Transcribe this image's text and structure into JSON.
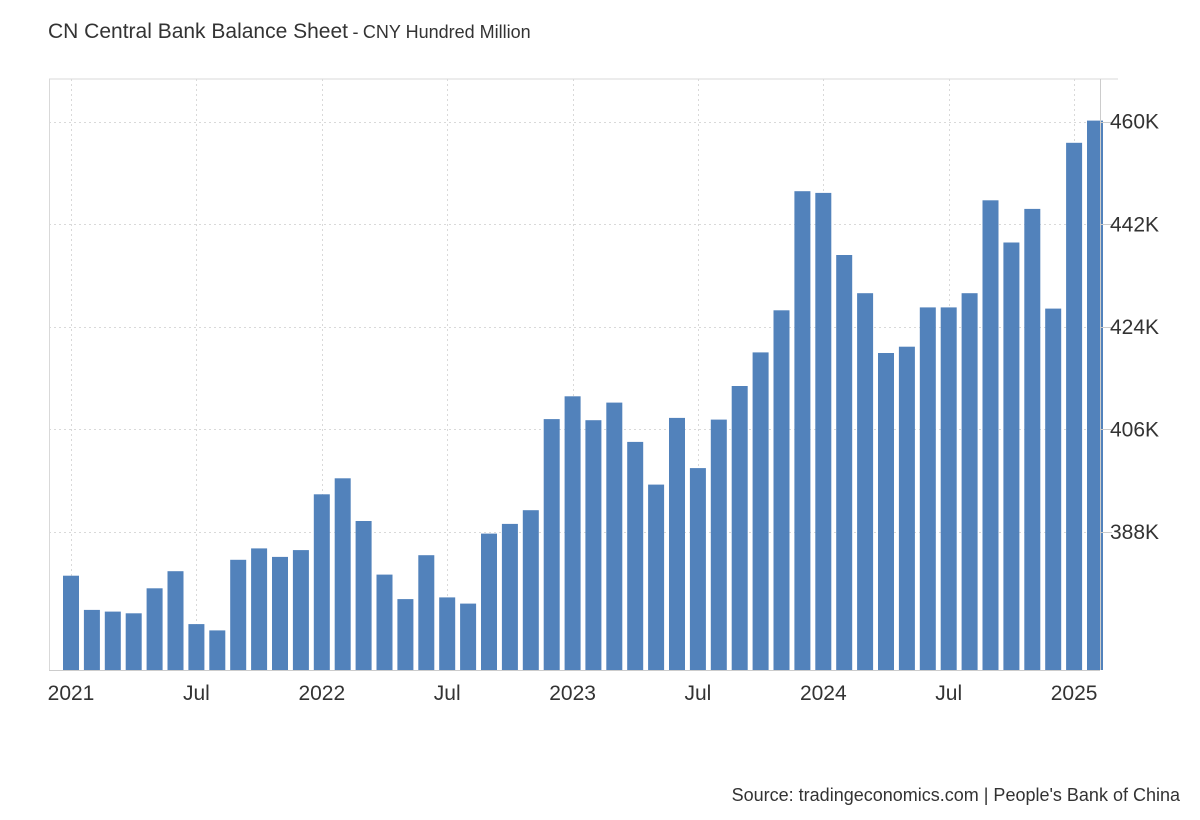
{
  "header": {
    "title": "CN Central Bank Balance Sheet",
    "separator": "-",
    "subtitle": "CNY Hundred Million"
  },
  "footer": {
    "source": "Source: tradingeconomics.com | People's Bank of China"
  },
  "colors": {
    "bar": "#5282bb",
    "grid": "#d9d9d9",
    "axis": "#cccccc",
    "text": "#333333"
  },
  "chart_data": {
    "type": "bar",
    "title": "CN Central Bank Balance Sheet",
    "ylabel": "CNY Hundred Million",
    "grid": true,
    "ylim": [
      363750,
      467500
    ],
    "y_axis_side": "right",
    "y_ticks": [
      388000,
      406000,
      424000,
      442000,
      460000
    ],
    "y_tick_labels": [
      "388K",
      "406K",
      "424K",
      "442K",
      "460K"
    ],
    "x_tick_labels": [
      {
        "index": 0,
        "label": "2021"
      },
      {
        "index": 6,
        "label": "Jul"
      },
      {
        "index": 12,
        "label": "2022"
      },
      {
        "index": 18,
        "label": "Jul"
      },
      {
        "index": 24,
        "label": "2023"
      },
      {
        "index": 30,
        "label": "Jul"
      },
      {
        "index": 36,
        "label": "2024"
      },
      {
        "index": 42,
        "label": "Jul"
      },
      {
        "index": 48,
        "label": "2025"
      }
    ],
    "categories": [
      "2021-01",
      "2021-02",
      "2021-03",
      "2021-04",
      "2021-05",
      "2021-06",
      "2021-07",
      "2021-08",
      "2021-09",
      "2021-10",
      "2021-11",
      "2021-12",
      "2022-01",
      "2022-02",
      "2022-03",
      "2022-04",
      "2022-05",
      "2022-06",
      "2022-07",
      "2022-08",
      "2022-09",
      "2022-10",
      "2022-11",
      "2022-12",
      "2023-01",
      "2023-02",
      "2023-03",
      "2023-04",
      "2023-05",
      "2023-06",
      "2023-07",
      "2023-08",
      "2023-09",
      "2023-10",
      "2023-11",
      "2023-12",
      "2024-01",
      "2024-02",
      "2024-03",
      "2024-04",
      "2024-05",
      "2024-06",
      "2024-07",
      "2024-08",
      "2024-09",
      "2024-10",
      "2024-11",
      "2024-12",
      "2025-01",
      "2025-02"
    ],
    "values": [
      380300,
      374300,
      374000,
      373700,
      378100,
      381100,
      371800,
      370700,
      383100,
      385100,
      383600,
      384800,
      394600,
      397400,
      389900,
      380500,
      376200,
      383900,
      376500,
      375400,
      387700,
      389400,
      391800,
      407800,
      411800,
      407600,
      410700,
      403800,
      396300,
      408000,
      399200,
      407700,
      413600,
      419500,
      426900,
      447800,
      447500,
      436600,
      429900,
      419400,
      420500,
      427400,
      427400,
      429900,
      446200,
      438800,
      444700,
      427200,
      456300,
      460200
    ]
  }
}
